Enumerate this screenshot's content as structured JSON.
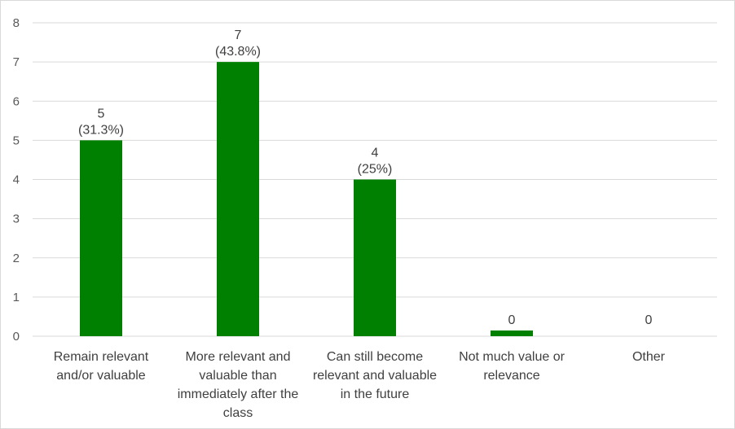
{
  "chart_data": {
    "type": "bar",
    "categories": [
      [
        "Remain relevant",
        "and/or valuable"
      ],
      [
        "More relevant and",
        "valuable than",
        "immediately after the",
        "class"
      ],
      [
        "Can still become",
        "relevant and valuable",
        "in the future"
      ],
      [
        "Not much value or",
        "relevance"
      ],
      [
        "Other"
      ]
    ],
    "values": [
      5,
      7,
      4,
      0,
      0
    ],
    "data_labels": [
      [
        "5",
        "(31.3%)"
      ],
      [
        "7",
        "(43.8%)"
      ],
      [
        "4",
        "(25%)"
      ],
      [
        "0"
      ],
      [
        "0"
      ]
    ],
    "ylim": [
      0,
      8
    ],
    "yticks": [
      "0",
      "1",
      "2",
      "3",
      "4",
      "5",
      "6",
      "7",
      "8"
    ],
    "grid": true,
    "bar_color": "#008000",
    "grid_color": "#d9d9d9"
  }
}
